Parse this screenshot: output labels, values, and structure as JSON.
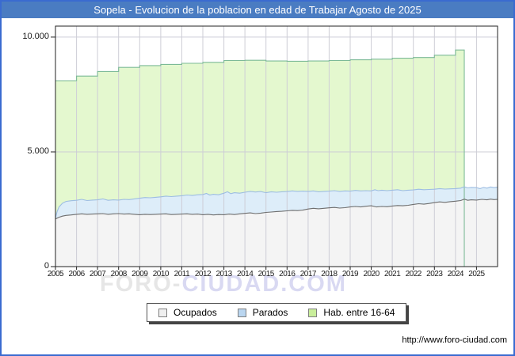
{
  "watermark": {
    "part1": "FORO-",
    "part2": "CIUDAD.COM",
    "color1": "#e6e6e6",
    "color2": "#d9d9f2"
  },
  "footer": {
    "url": "http://www.foro-ciudad.com"
  },
  "legend": {
    "items": [
      {
        "label": "Ocupados",
        "color": "#efefef",
        "border": "#808080"
      },
      {
        "label": "Parados",
        "color": "#bad6f0",
        "border": "#808080"
      },
      {
        "label": "Hab. entre 16-64",
        "color": "#c9ee9b",
        "border": "#808080"
      }
    ]
  },
  "chart_data": {
    "type": "area",
    "title": "Sopela - Evolucion de la poblacion en edad de Trabajar Agosto de 2025",
    "xlabel": "",
    "ylabel": "",
    "xlim": [
      2005,
      2026
    ],
    "ylim": [
      0,
      10480
    ],
    "grid": true,
    "legend_position": "bottom-center",
    "colors": {
      "frame_border": "#3a6bd0",
      "titlebar_bg": "#4a7cc2",
      "grid": "#cdcdd6",
      "plot_border": "#222222"
    },
    "x_ticks": [
      2005,
      2006,
      2007,
      2008,
      2009,
      2010,
      2011,
      2012,
      2013,
      2014,
      2015,
      2016,
      2017,
      2018,
      2019,
      2020,
      2021,
      2022,
      2023,
      2024,
      2025
    ],
    "y_ticks": [
      {
        "v": 0,
        "label": "0"
      },
      {
        "v": 5000,
        "label": "5.000"
      },
      {
        "v": 10000,
        "label": "10.000"
      }
    ],
    "series": [
      {
        "id": "hab-16-64",
        "name": "Hab. entre 16-64",
        "step": true,
        "close_right": true,
        "fill": "#e4f8cf",
        "stroke": "#7cba97",
        "points": [
          [
            2005,
            8100
          ],
          [
            2006,
            8300
          ],
          [
            2007,
            8500
          ],
          [
            2008,
            8680
          ],
          [
            2009,
            8760
          ],
          [
            2010,
            8810
          ],
          [
            2011,
            8860
          ],
          [
            2012,
            8900
          ],
          [
            2013,
            8980
          ],
          [
            2014,
            8990
          ],
          [
            2015,
            8960
          ],
          [
            2016,
            8950
          ],
          [
            2017,
            8960
          ],
          [
            2018,
            8980
          ],
          [
            2019,
            9010
          ],
          [
            2020,
            9040
          ],
          [
            2021,
            9080
          ],
          [
            2022,
            9110
          ],
          [
            2023,
            9210
          ],
          [
            2024,
            9440
          ],
          [
            2024.42,
            9440
          ]
        ]
      },
      {
        "id": "parados",
        "name": "Parados",
        "step": false,
        "close_right": false,
        "fill": "#ddedf9",
        "stroke": "#9dbde2",
        "points": [
          [
            2005,
            2120
          ],
          [
            2005.08,
            2400
          ],
          [
            2005.17,
            2600
          ],
          [
            2005.33,
            2760
          ],
          [
            2005.5,
            2840
          ],
          [
            2005.75,
            2870
          ],
          [
            2006,
            2890
          ],
          [
            2006.25,
            2930
          ],
          [
            2006.5,
            2880
          ],
          [
            2006.75,
            2900
          ],
          [
            2007,
            2910
          ],
          [
            2007.25,
            2950
          ],
          [
            2007.5,
            2890
          ],
          [
            2007.75,
            2910
          ],
          [
            2008,
            2900
          ],
          [
            2008.25,
            2930
          ],
          [
            2008.5,
            2920
          ],
          [
            2008.75,
            2950
          ],
          [
            2009,
            2980
          ],
          [
            2009.25,
            3010
          ],
          [
            2009.5,
            3000
          ],
          [
            2009.75,
            3020
          ],
          [
            2010,
            3040
          ],
          [
            2010.25,
            3070
          ],
          [
            2010.5,
            3050
          ],
          [
            2010.75,
            3070
          ],
          [
            2011,
            3090
          ],
          [
            2011.25,
            3120
          ],
          [
            2011.5,
            3100
          ],
          [
            2011.75,
            3130
          ],
          [
            2012,
            3140
          ],
          [
            2012.17,
            3190
          ],
          [
            2012.33,
            3120
          ],
          [
            2012.5,
            3150
          ],
          [
            2012.75,
            3130
          ],
          [
            2013,
            3200
          ],
          [
            2013.17,
            3260
          ],
          [
            2013.33,
            3180
          ],
          [
            2013.5,
            3220
          ],
          [
            2013.75,
            3200
          ],
          [
            2014,
            3240
          ],
          [
            2014.25,
            3280
          ],
          [
            2014.5,
            3250
          ],
          [
            2014.75,
            3270
          ],
          [
            2015,
            3220
          ],
          [
            2015.25,
            3260
          ],
          [
            2015.5,
            3240
          ],
          [
            2015.75,
            3260
          ],
          [
            2016,
            3270
          ],
          [
            2016.25,
            3300
          ],
          [
            2016.5,
            3280
          ],
          [
            2016.75,
            3290
          ],
          [
            2017,
            3280
          ],
          [
            2017.25,
            3300
          ],
          [
            2017.5,
            3260
          ],
          [
            2017.75,
            3280
          ],
          [
            2018,
            3290
          ],
          [
            2018.25,
            3310
          ],
          [
            2018.5,
            3280
          ],
          [
            2018.75,
            3300
          ],
          [
            2019,
            3290
          ],
          [
            2019.25,
            3320
          ],
          [
            2019.5,
            3300
          ],
          [
            2019.75,
            3310
          ],
          [
            2020,
            3300
          ],
          [
            2020.17,
            3350
          ],
          [
            2020.33,
            3310
          ],
          [
            2020.5,
            3330
          ],
          [
            2020.75,
            3310
          ],
          [
            2021,
            3330
          ],
          [
            2021.25,
            3350
          ],
          [
            2021.5,
            3310
          ],
          [
            2021.75,
            3330
          ],
          [
            2022,
            3340
          ],
          [
            2022.25,
            3370
          ],
          [
            2022.5,
            3350
          ],
          [
            2022.75,
            3360
          ],
          [
            2023,
            3370
          ],
          [
            2023.25,
            3400
          ],
          [
            2023.5,
            3380
          ],
          [
            2023.75,
            3390
          ],
          [
            2024,
            3400
          ],
          [
            2024.25,
            3420
          ],
          [
            2024.42,
            3480
          ],
          [
            2024.58,
            3430
          ],
          [
            2024.75,
            3450
          ],
          [
            2025,
            3440
          ],
          [
            2025.17,
            3400
          ],
          [
            2025.33,
            3450
          ],
          [
            2025.5,
            3420
          ],
          [
            2025.67,
            3470
          ],
          [
            2025.83,
            3440
          ],
          [
            2026,
            3460
          ]
        ]
      },
      {
        "id": "ocupados",
        "name": "Ocupados",
        "step": false,
        "close_right": false,
        "fill": "#f4f4f4",
        "stroke": "#6e6e6e",
        "points": [
          [
            2005,
            2080
          ],
          [
            2005.17,
            2150
          ],
          [
            2005.33,
            2200
          ],
          [
            2005.5,
            2230
          ],
          [
            2005.75,
            2250
          ],
          [
            2006,
            2280
          ],
          [
            2006.25,
            2300
          ],
          [
            2006.5,
            2280
          ],
          [
            2006.75,
            2290
          ],
          [
            2007,
            2300
          ],
          [
            2007.25,
            2310
          ],
          [
            2007.5,
            2280
          ],
          [
            2007.75,
            2300
          ],
          [
            2008,
            2310
          ],
          [
            2008.25,
            2290
          ],
          [
            2008.5,
            2300
          ],
          [
            2008.75,
            2280
          ],
          [
            2009,
            2260
          ],
          [
            2009.25,
            2280
          ],
          [
            2009.5,
            2270
          ],
          [
            2009.75,
            2280
          ],
          [
            2010,
            2290
          ],
          [
            2010.25,
            2300
          ],
          [
            2010.5,
            2270
          ],
          [
            2010.75,
            2280
          ],
          [
            2011,
            2290
          ],
          [
            2011.25,
            2300
          ],
          [
            2011.5,
            2280
          ],
          [
            2011.75,
            2290
          ],
          [
            2012,
            2260
          ],
          [
            2012.25,
            2280
          ],
          [
            2012.5,
            2250
          ],
          [
            2012.75,
            2270
          ],
          [
            2013,
            2260
          ],
          [
            2013.25,
            2290
          ],
          [
            2013.5,
            2270
          ],
          [
            2013.75,
            2300
          ],
          [
            2014,
            2320
          ],
          [
            2014.25,
            2340
          ],
          [
            2014.5,
            2310
          ],
          [
            2014.75,
            2330
          ],
          [
            2015,
            2360
          ],
          [
            2015.25,
            2380
          ],
          [
            2015.5,
            2400
          ],
          [
            2015.75,
            2410
          ],
          [
            2016,
            2430
          ],
          [
            2016.25,
            2450
          ],
          [
            2016.5,
            2440
          ],
          [
            2016.75,
            2460
          ],
          [
            2017,
            2510
          ],
          [
            2017.25,
            2540
          ],
          [
            2017.5,
            2520
          ],
          [
            2017.75,
            2540
          ],
          [
            2018,
            2560
          ],
          [
            2018.25,
            2580
          ],
          [
            2018.5,
            2550
          ],
          [
            2018.75,
            2570
          ],
          [
            2019,
            2600
          ],
          [
            2019.25,
            2620
          ],
          [
            2019.5,
            2600
          ],
          [
            2019.75,
            2630
          ],
          [
            2020,
            2650
          ],
          [
            2020.25,
            2600
          ],
          [
            2020.5,
            2620
          ],
          [
            2020.75,
            2610
          ],
          [
            2021,
            2640
          ],
          [
            2021.25,
            2660
          ],
          [
            2021.5,
            2650
          ],
          [
            2021.75,
            2670
          ],
          [
            2022,
            2710
          ],
          [
            2022.25,
            2740
          ],
          [
            2022.5,
            2720
          ],
          [
            2022.75,
            2750
          ],
          [
            2023,
            2790
          ],
          [
            2023.25,
            2820
          ],
          [
            2023.5,
            2800
          ],
          [
            2023.75,
            2830
          ],
          [
            2024,
            2850
          ],
          [
            2024.25,
            2880
          ],
          [
            2024.42,
            2940
          ],
          [
            2024.58,
            2890
          ],
          [
            2024.75,
            2910
          ],
          [
            2025,
            2900
          ],
          [
            2025.25,
            2930
          ],
          [
            2025.5,
            2910
          ],
          [
            2025.67,
            2940
          ],
          [
            2025.83,
            2920
          ],
          [
            2026,
            2930
          ]
        ]
      }
    ]
  }
}
